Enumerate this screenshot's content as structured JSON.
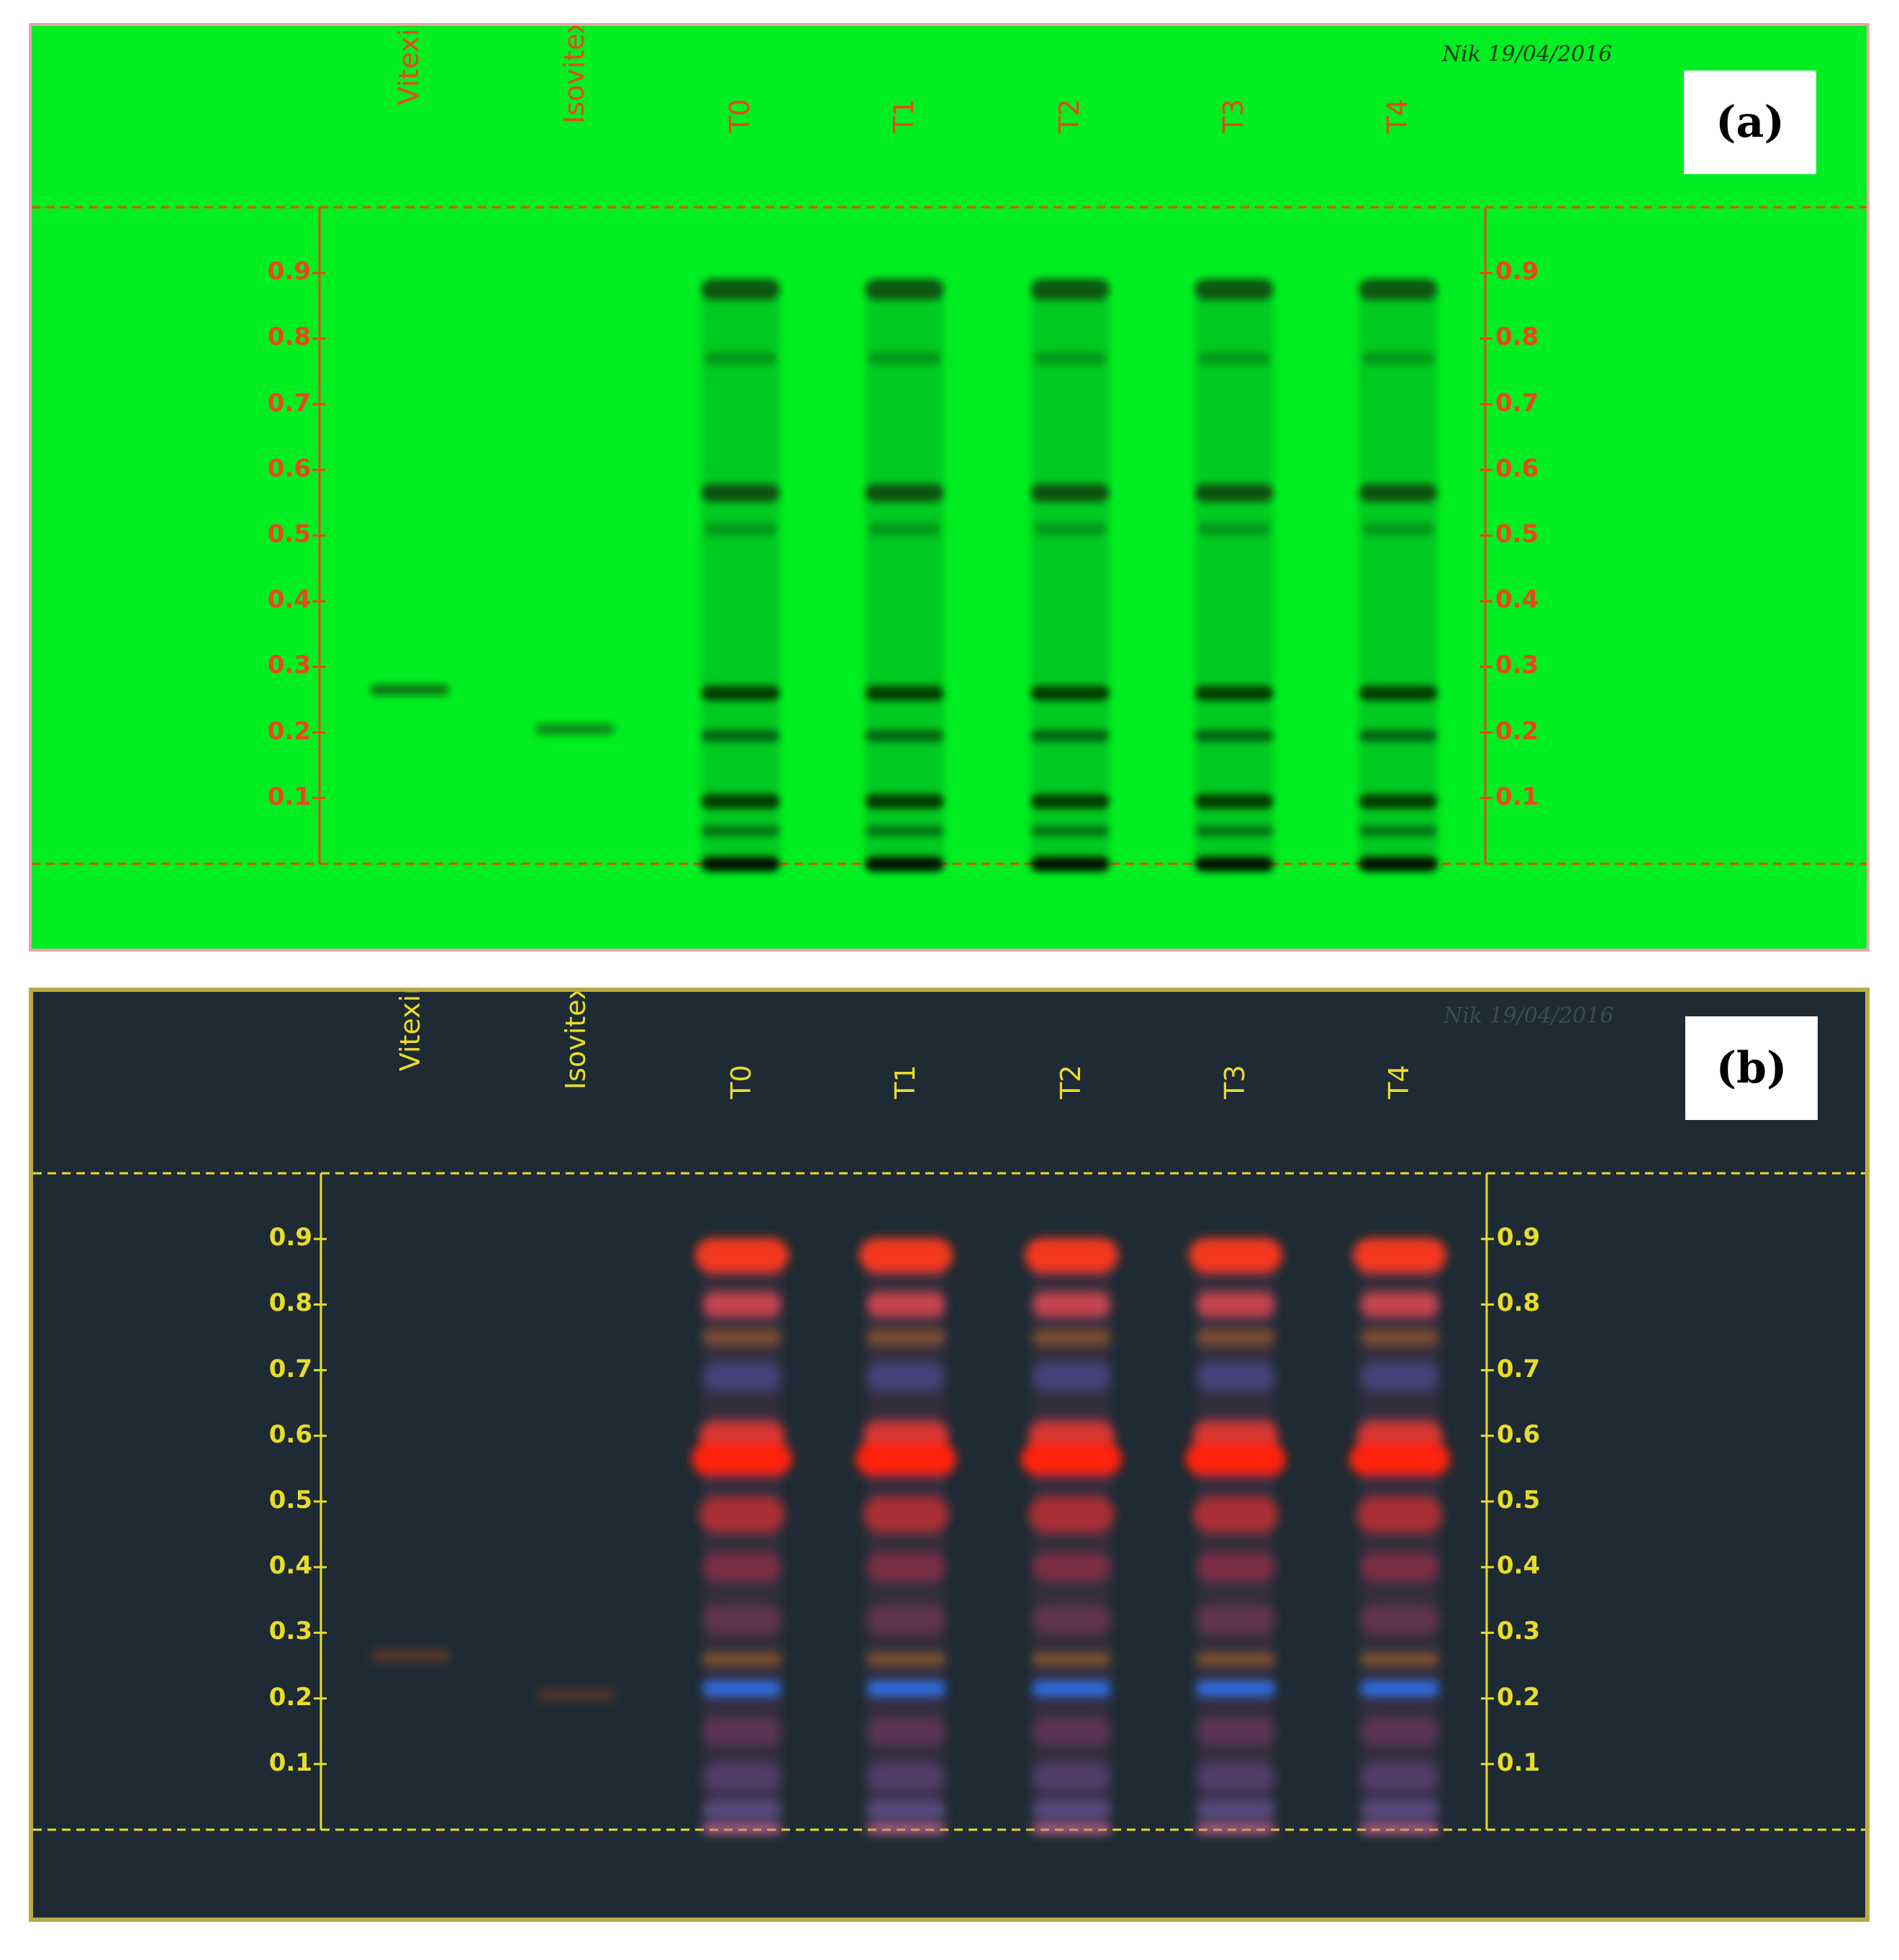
{
  "panels": [
    {
      "id": "a",
      "label": "(a)",
      "handwritten_note": "Nik 19/04/2016",
      "lanes": [
        "Vitexin",
        "Isovitexin",
        "T0",
        "T1",
        "T2",
        "T3",
        "T4"
      ],
      "rf_ticks": [
        "0.9",
        "0.8",
        "0.7",
        "0.6",
        "0.5",
        "0.4",
        "0.3",
        "0.2",
        "0.1"
      ],
      "colors": {
        "plate": "#00ee22",
        "label": "#e8481b",
        "band": "#0a3a0a"
      }
    },
    {
      "id": "b",
      "label": "(b)",
      "handwritten_note": "Nik 19/04/2016",
      "lanes": [
        "Vitexin",
        "Isovitexin",
        "T0",
        "T1",
        "T2",
        "T3",
        "T4"
      ],
      "rf_ticks": [
        "0.9",
        "0.8",
        "0.7",
        "0.6",
        "0.5",
        "0.4",
        "0.3",
        "0.2",
        "0.1"
      ],
      "colors": {
        "plate": "#1e2b34",
        "label": "#e8dc2a",
        "band": "#ff3a20"
      }
    }
  ]
}
